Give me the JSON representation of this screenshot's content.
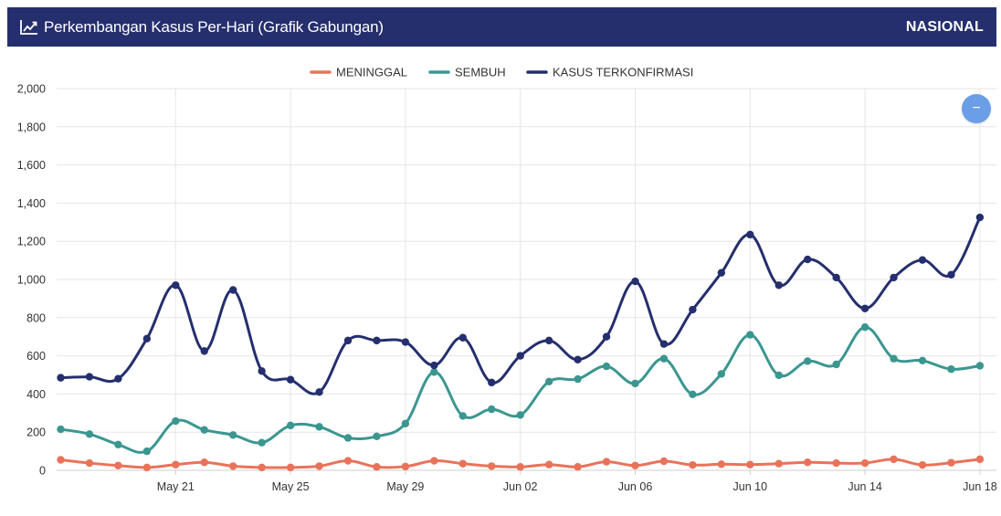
{
  "header": {
    "title": "Perkembangan Kasus Per-Hari (Grafik Gabungan)",
    "badge": "NASIONAL",
    "title_icon": "line-chart-icon",
    "bg_color": "#252f6e"
  },
  "zoom_button": {
    "label": "−",
    "icon": "minus-icon",
    "color": "#6a9ee6"
  },
  "chart_data": {
    "type": "line",
    "xlabel": "",
    "ylabel": "",
    "ylim": [
      0,
      2000
    ],
    "yticks": [
      0,
      200,
      400,
      600,
      800,
      1000,
      1200,
      1400,
      1600,
      1800,
      2000
    ],
    "ytick_labels": [
      "0",
      "200",
      "400",
      "600",
      "800",
      "1,000",
      "1,200",
      "1,400",
      "1,600",
      "1,800",
      "2,000"
    ],
    "x": [
      "2020-05-17",
      "2020-05-18",
      "2020-05-19",
      "2020-05-20",
      "2020-05-21",
      "2020-05-22",
      "2020-05-23",
      "2020-05-24",
      "2020-05-25",
      "2020-05-26",
      "2020-05-27",
      "2020-05-28",
      "2020-05-29",
      "2020-05-30",
      "2020-05-31",
      "2020-06-01",
      "2020-06-02",
      "2020-06-03",
      "2020-06-04",
      "2020-06-05",
      "2020-06-06",
      "2020-06-07",
      "2020-06-08",
      "2020-06-09",
      "2020-06-10",
      "2020-06-11",
      "2020-06-12",
      "2020-06-13",
      "2020-06-14",
      "2020-06-15",
      "2020-06-16",
      "2020-06-17",
      "2020-06-18"
    ],
    "xtick_labels": [
      "May 21",
      "May 25",
      "May 29",
      "Jun 02",
      "Jun 06",
      "Jun 10",
      "Jun 14",
      "Jun 18"
    ],
    "xtick_dates": [
      "2020-05-21",
      "2020-05-25",
      "2020-05-29",
      "2020-06-02",
      "2020-06-06",
      "2020-06-10",
      "2020-06-14",
      "2020-06-18"
    ],
    "grid": true,
    "legend_position": "top-center",
    "series": [
      {
        "name": "MENINGGAL",
        "color": "#e8735a",
        "values": [
          55,
          38,
          25,
          15,
          30,
          42,
          22,
          15,
          15,
          22,
          50,
          18,
          20,
          50,
          35,
          22,
          18,
          30,
          18,
          45,
          25,
          48,
          28,
          32,
          30,
          35,
          42,
          38,
          38,
          58,
          28,
          40,
          58
        ]
      },
      {
        "name": "SEMBUH",
        "color": "#3b9690",
        "values": [
          215,
          190,
          135,
          100,
          258,
          212,
          185,
          145,
          235,
          228,
          170,
          178,
          245,
          515,
          285,
          320,
          290,
          465,
          478,
          545,
          455,
          585,
          398,
          505,
          710,
          498,
          572,
          555,
          750,
          585,
          575,
          530,
          548
        ]
      },
      {
        "name": "KASUS TERKONFIRMASI",
        "color": "#252f6e",
        "values": [
          485,
          490,
          480,
          690,
          970,
          625,
          945,
          520,
          475,
          410,
          680,
          680,
          672,
          550,
          695,
          460,
          600,
          680,
          580,
          700,
          990,
          662,
          842,
          1035,
          1235,
          970,
          1105,
          1010,
          848,
          1010,
          1102,
          1025,
          1325
        ]
      }
    ]
  }
}
